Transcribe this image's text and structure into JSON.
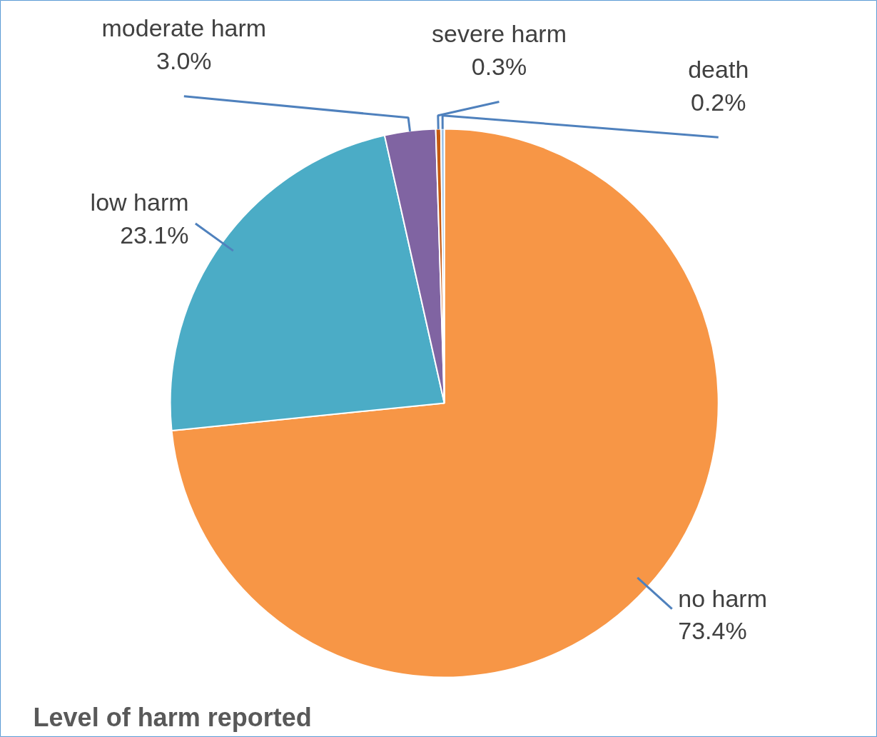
{
  "chart_data": {
    "type": "pie",
    "title": "Level of harm reported",
    "categories": [
      "no harm",
      "low harm",
      "moderate harm",
      "severe harm",
      "death"
    ],
    "values": [
      73.4,
      23.1,
      3.0,
      0.3,
      0.2
    ],
    "value_labels": [
      "73.4%",
      "23.1%",
      "3.0%",
      "0.3%",
      "0.2%"
    ],
    "colors": [
      "#f79646",
      "#4bacc6",
      "#8064a2",
      "#c55a11",
      "#9dc3e6"
    ]
  }
}
